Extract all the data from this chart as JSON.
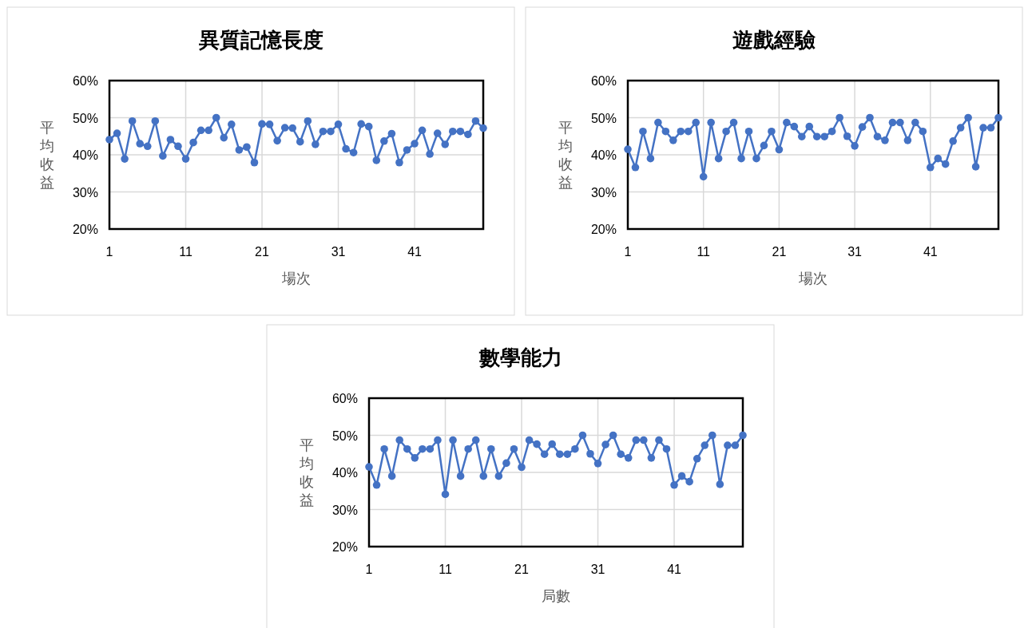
{
  "chart_data": [
    {
      "type": "line",
      "title": "異質記憶長度",
      "xlabel": "場次",
      "ylabel": "平均收益",
      "grid": true,
      "marker": "circle",
      "line_style": "solid",
      "xlim": [
        1,
        50
      ],
      "xticks": [
        1,
        11,
        21,
        31,
        41
      ],
      "ylim": [
        20,
        60
      ],
      "yticks": [
        {
          "value": 20,
          "label": "20%"
        },
        {
          "value": 30,
          "label": "30%"
        },
        {
          "value": 40,
          "label": "40%"
        },
        {
          "value": 50,
          "label": "50%"
        },
        {
          "value": 60,
          "label": "60%"
        }
      ],
      "x": [
        1,
        2,
        3,
        4,
        5,
        6,
        7,
        8,
        9,
        10,
        11,
        12,
        13,
        14,
        15,
        16,
        17,
        18,
        19,
        20,
        21,
        22,
        23,
        24,
        25,
        26,
        27,
        28,
        29,
        30,
        31,
        32,
        33,
        34,
        35,
        36,
        37,
        38,
        39,
        40,
        41,
        42,
        43,
        44,
        45,
        46,
        47,
        48,
        49,
        50
      ],
      "series": [
        {
          "color": "#4472c4",
          "values": [
            44.1,
            45.8,
            38.9,
            49.1,
            43.0,
            42.3,
            49.1,
            39.7,
            44.1,
            42.3,
            38.9,
            43.3,
            46.6,
            46.6,
            50.0,
            44.6,
            48.2,
            41.3,
            42.1,
            37.9,
            48.3,
            48.2,
            43.8,
            47.3,
            47.2,
            43.5,
            49.1,
            42.8,
            46.3,
            46.3,
            48.2,
            41.6,
            40.6,
            48.3,
            47.6,
            38.5,
            43.7,
            45.7,
            37.9,
            41.3,
            43.0,
            46.6,
            40.2,
            45.8,
            42.8,
            46.3,
            46.3,
            45.5,
            49.1,
            47.2
          ]
        }
      ]
    },
    {
      "type": "line",
      "title": "遊戲經驗",
      "xlabel": "場次",
      "ylabel": "平均收益",
      "grid": true,
      "marker": "circle",
      "line_style": "solid",
      "xlim": [
        1,
        50
      ],
      "xticks": [
        1,
        11,
        21,
        31,
        41
      ],
      "ylim": [
        20,
        60
      ],
      "yticks": [
        {
          "value": 20,
          "label": "20%"
        },
        {
          "value": 30,
          "label": "30%"
        },
        {
          "value": 40,
          "label": "40%"
        },
        {
          "value": 50,
          "label": "50%"
        },
        {
          "value": 60,
          "label": "60%"
        }
      ],
      "x": [
        1,
        2,
        3,
        4,
        5,
        6,
        7,
        8,
        9,
        10,
        11,
        12,
        13,
        14,
        15,
        16,
        17,
        18,
        19,
        20,
        21,
        22,
        23,
        24,
        25,
        26,
        27,
        28,
        29,
        30,
        31,
        32,
        33,
        34,
        35,
        36,
        37,
        38,
        39,
        40,
        41,
        42,
        43,
        44,
        45,
        46,
        47,
        48,
        49,
        50
      ],
      "series": [
        {
          "color": "#4472c4",
          "values": [
            41.5,
            36.6,
            46.3,
            39.0,
            48.7,
            46.3,
            43.9,
            46.3,
            46.3,
            48.7,
            34.1,
            48.7,
            39.0,
            46.3,
            48.7,
            39.0,
            46.3,
            39.0,
            42.5,
            46.3,
            41.4,
            48.7,
            47.6,
            44.9,
            47.6,
            44.9,
            44.9,
            46.3,
            50.0,
            45.0,
            42.4,
            47.5,
            50.0,
            44.9,
            43.9,
            48.7,
            48.7,
            43.9,
            48.7,
            46.3,
            36.6,
            39.0,
            37.5,
            43.7,
            47.3,
            50.0,
            36.8,
            47.3,
            47.3,
            50.0
          ]
        }
      ]
    },
    {
      "type": "line",
      "title": "數學能力",
      "xlabel": "局數",
      "ylabel": "平均收益",
      "grid": true,
      "marker": "circle",
      "line_style": "solid",
      "xlim": [
        1,
        50
      ],
      "xticks": [
        1,
        11,
        21,
        31,
        41
      ],
      "ylim": [
        20,
        60
      ],
      "yticks": [
        {
          "value": 20,
          "label": "20%"
        },
        {
          "value": 30,
          "label": "30%"
        },
        {
          "value": 40,
          "label": "40%"
        },
        {
          "value": 50,
          "label": "50%"
        },
        {
          "value": 60,
          "label": "60%"
        }
      ],
      "x": [
        1,
        2,
        3,
        4,
        5,
        6,
        7,
        8,
        9,
        10,
        11,
        12,
        13,
        14,
        15,
        16,
        17,
        18,
        19,
        20,
        21,
        22,
        23,
        24,
        25,
        26,
        27,
        28,
        29,
        30,
        31,
        32,
        33,
        34,
        35,
        36,
        37,
        38,
        39,
        40,
        41,
        42,
        43,
        44,
        45,
        46,
        47,
        48,
        49,
        50
      ],
      "series": [
        {
          "color": "#4472c4",
          "values": [
            41.5,
            36.6,
            46.3,
            39.0,
            48.7,
            46.3,
            43.9,
            46.3,
            46.3,
            48.7,
            34.1,
            48.7,
            39.0,
            46.3,
            48.7,
            39.0,
            46.3,
            39.0,
            42.5,
            46.3,
            41.4,
            48.7,
            47.6,
            44.9,
            47.6,
            44.9,
            44.9,
            46.3,
            50.0,
            45.0,
            42.4,
            47.5,
            50.0,
            44.9,
            43.9,
            48.7,
            48.7,
            43.9,
            48.7,
            46.3,
            36.6,
            39.0,
            37.5,
            43.7,
            47.3,
            50.0,
            36.8,
            47.3,
            47.3,
            50.0
          ]
        }
      ]
    }
  ]
}
